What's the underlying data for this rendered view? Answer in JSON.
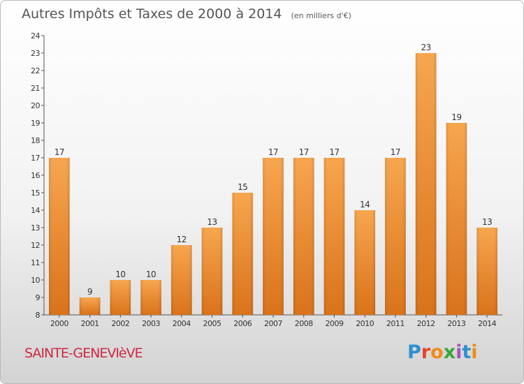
{
  "chart_data": {
    "type": "bar",
    "title": "Autres Impôts et Taxes de 2000 à 2014",
    "unit_label": "(en milliers d'€)",
    "categories": [
      "2000",
      "2001",
      "2002",
      "2003",
      "2004",
      "2005",
      "2006",
      "2007",
      "2008",
      "2009",
      "2010",
      "2011",
      "2012",
      "2013",
      "2014"
    ],
    "values": [
      17,
      9,
      10,
      10,
      12,
      13,
      15,
      17,
      17,
      17,
      14,
      17,
      23,
      19,
      13
    ],
    "ylim": [
      8,
      24
    ],
    "yticks": [
      8,
      9,
      10,
      11,
      12,
      13,
      14,
      15,
      16,
      17,
      18,
      19,
      20,
      21,
      22,
      23,
      24
    ],
    "grid": false,
    "bar_color": "#f0922e",
    "xlabel": "",
    "ylabel": ""
  },
  "footer": {
    "place_name": "SAINTE-GENEVIèVE",
    "logo_text": [
      "P",
      "r",
      "o",
      "x",
      "i",
      "t",
      "i"
    ]
  }
}
